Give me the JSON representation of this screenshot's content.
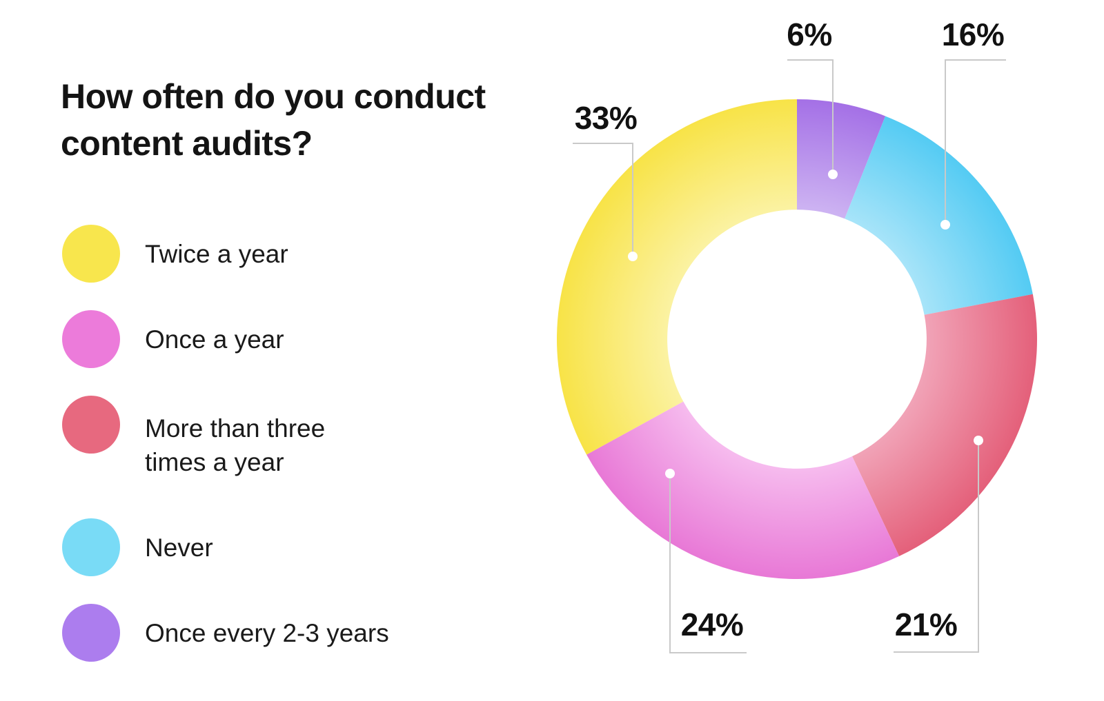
{
  "page": {
    "background": "#FFFFFF"
  },
  "title": {
    "line1": "How often do you conduct",
    "line2": "content audits?",
    "color": "#141414"
  },
  "legend": {
    "position": "left",
    "items": [
      {
        "label": "Twice a year",
        "color": "#F8E64D"
      },
      {
        "label": "Once a year",
        "color": "#EC7BDA"
      },
      {
        "label": "More than three times a year",
        "color": "#E7697F"
      },
      {
        "label": "Never",
        "color": "#79DBF6"
      },
      {
        "label": "Once every 2-3 years",
        "color": "#AC7DEE"
      }
    ]
  },
  "chart_data": {
    "type": "pie",
    "subtype": "donut",
    "title": "How often do you conduct content audits?",
    "unit": "%",
    "start_angle_deg": 0,
    "direction": "clockwise",
    "inner_radius_ratio": 0.54,
    "legend_position": "left",
    "leader_line_color": "#C9C9C9",
    "leader_dot_color": "#FFFFFF",
    "slices": [
      {
        "label": "Once every 2-3 years",
        "value": 6,
        "display": "6%",
        "color_outer": "#A470E6",
        "color_inner": "#CDB3F2"
      },
      {
        "label": "Never",
        "value": 16,
        "display": "16%",
        "color_outer": "#54CBF3",
        "color_inner": "#A7E4F9"
      },
      {
        "label": "More than three times a year",
        "value": 21,
        "display": "21%",
        "color_outer": "#E4607A",
        "color_inner": "#F1A3B7"
      },
      {
        "label": "Once a year",
        "value": 24,
        "display": "24%",
        "color_outer": "#E878D6",
        "color_inner": "#F6BBEE"
      },
      {
        "label": "Twice a year",
        "value": 33,
        "display": "33%",
        "color_outer": "#F8E347",
        "color_inner": "#FBF2A2"
      }
    ]
  }
}
